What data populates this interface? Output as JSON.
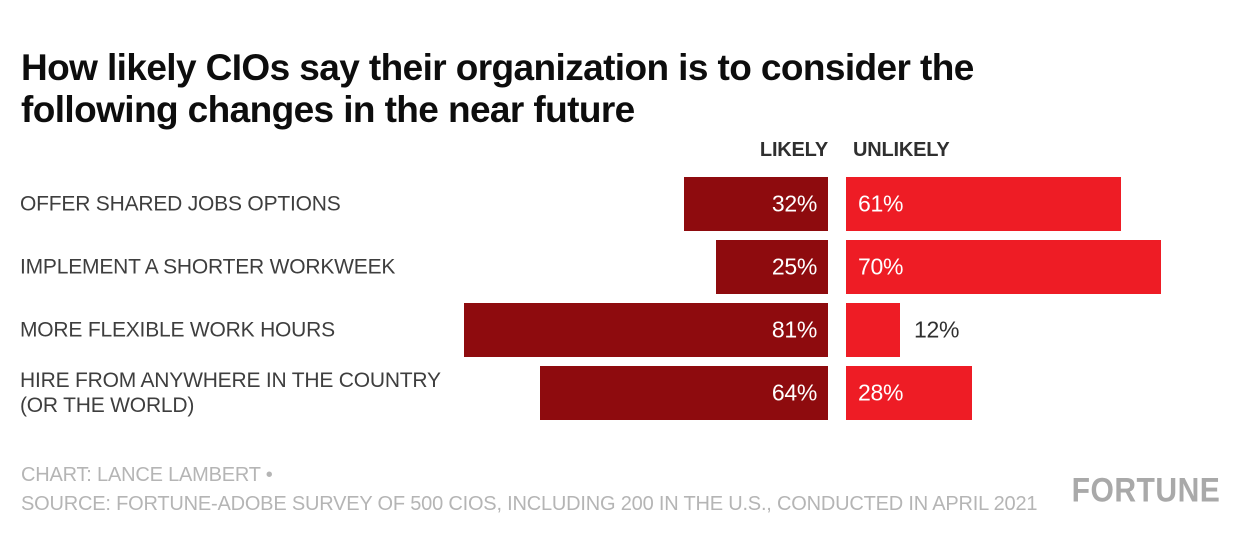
{
  "title": "How likely CIOs say their organization is to consider the following changes in the near future",
  "title_lines": [
    "How likely CIOs say their organization is to consider the",
    "following changes in the near future"
  ],
  "column_headers": {
    "likely": "LIKELY",
    "unlikely": "UNLIKELY"
  },
  "chart_data": {
    "type": "bar",
    "orientation": "horizontal",
    "layout": "diverging-paired",
    "unit": "%",
    "value_range": [
      0,
      100
    ],
    "categories": [
      "OFFER SHARED JOBS OPTIONS",
      "IMPLEMENT A SHORTER WORKWEEK",
      "MORE FLEXIBLE WORK HOURS",
      "HIRE FROM ANYWHERE IN THE COUNTRY (OR THE WORLD)"
    ],
    "series": [
      {
        "name": "LIKELY",
        "color": "#8e0b0e",
        "values": [
          32,
          25,
          81,
          64
        ]
      },
      {
        "name": "UNLIKELY",
        "color": "#ee1c25",
        "values": [
          61,
          70,
          12,
          28
        ]
      }
    ],
    "rows": [
      {
        "label": "OFFER SHARED JOBS OPTIONS",
        "likely": 32,
        "unlikely": 61,
        "likely_label": "32%",
        "unlikely_label": "61%"
      },
      {
        "label": "IMPLEMENT A SHORTER WORKWEEK",
        "likely": 25,
        "unlikely": 70,
        "likely_label": "25%",
        "unlikely_label": "70%"
      },
      {
        "label": "MORE FLEXIBLE WORK HOURS",
        "likely": 81,
        "unlikely": 12,
        "likely_label": "81%",
        "unlikely_label": "12%"
      },
      {
        "label": "HIRE FROM ANYWHERE IN THE COUNTRY (OR THE WORLD)",
        "likely": 64,
        "unlikely": 28,
        "likely_label": "64%",
        "unlikely_label": "28%"
      }
    ]
  },
  "footer": {
    "credit": "CHART: LANCE LAMBERT •",
    "source": "SOURCE: FORTUNE-ADOBE SURVEY OF 500 CIOS, INCLUDING 200 IN THE U.S., CONDUCTED IN APRIL 2021"
  },
  "branding": {
    "logo_text": "FORTUNE"
  },
  "colors": {
    "likely_bar": "#8e0b0e",
    "unlikely_bar": "#ee1c25",
    "title_text": "#0d0d0d",
    "label_text": "#3e3e3e",
    "header_text": "#2f2f2f",
    "value_inside": "#ffffff",
    "value_outside": "#2f2f2f",
    "footer_text": "#b5b5b5",
    "logo_text": "#a9a9a9",
    "background": "#ffffff"
  }
}
